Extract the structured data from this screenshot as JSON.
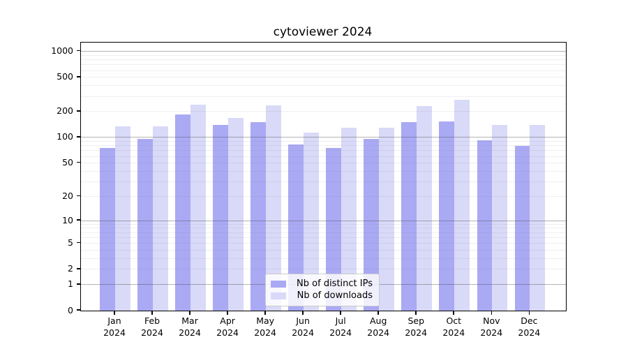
{
  "title": "cytoviewer 2024",
  "colors": {
    "ips_bar": "#a9a9f4",
    "downloads_bar": "#d9d9f8",
    "axis_spine": "#000000",
    "background": "#ffffff"
  },
  "legend": {
    "items": [
      {
        "key": "ips",
        "label": "Nb of distinct IPs"
      },
      {
        "key": "downloads",
        "label": "Nb of downloads"
      }
    ]
  },
  "chart_data": {
    "type": "bar",
    "title": "cytoviewer 2024",
    "xlabel": "",
    "ylabel": "",
    "y_scale": "log10(value+1)",
    "ylim": [
      0,
      1266
    ],
    "grid": true,
    "legend_position": "lower center",
    "x_months": [
      "Jan",
      "Feb",
      "Mar",
      "Apr",
      "May",
      "Jun",
      "Jul",
      "Aug",
      "Sep",
      "Oct",
      "Nov",
      "Dec"
    ],
    "x_year": "2024",
    "categories": [
      "Jan 2024",
      "Feb 2024",
      "Mar 2024",
      "Apr 2024",
      "May 2024",
      "Jun 2024",
      "Jul 2024",
      "Aug 2024",
      "Sep 2024",
      "Oct 2024",
      "Nov 2024",
      "Dec 2024"
    ],
    "series": [
      {
        "name": "Nb of distinct IPs",
        "color_key": "ips_bar",
        "values": [
          76,
          96,
          184,
          140,
          150,
          83,
          75,
          96,
          152,
          153,
          92,
          80
        ]
      },
      {
        "name": "Nb of downloads",
        "color_key": "downloads_bar",
        "values": [
          135,
          134,
          243,
          169,
          237,
          114,
          131,
          130,
          232,
          275,
          139,
          139
        ]
      }
    ],
    "y_ticks": [
      0,
      1,
      2,
      5,
      10,
      20,
      50,
      100,
      200,
      500,
      1000
    ],
    "y_minor_gridlines": [
      2,
      3,
      4,
      5,
      6,
      7,
      8,
      9,
      20,
      30,
      40,
      50,
      60,
      70,
      80,
      90,
      200,
      300,
      400,
      500,
      600,
      700,
      800,
      900
    ],
    "y_major_gridlines": [
      1,
      10,
      100,
      1000
    ]
  }
}
